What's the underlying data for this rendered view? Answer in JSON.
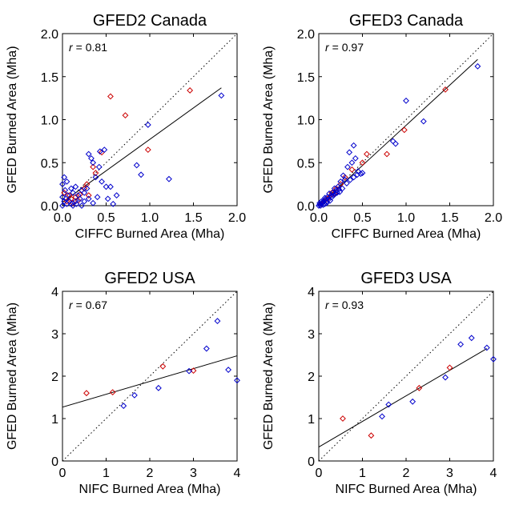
{
  "chart_data": [
    {
      "type": "scatter",
      "title": "GFED2 Canada",
      "xlabel": "CIFFC Burned Area (Mha)",
      "ylabel": "GFED Burned Area (Mha)",
      "r_label": "r",
      "r_value": "= 0.81",
      "xlim": [
        0,
        2.0
      ],
      "ylim": [
        0,
        2.0
      ],
      "xticks": [
        "0.0",
        "0.5",
        "1.0",
        "1.5",
        "2.0"
      ],
      "yticks": [
        "0.0",
        "0.5",
        "1.0",
        "1.5",
        "2.0"
      ],
      "xtick_values": [
        0,
        0.5,
        1.0,
        1.5,
        2.0
      ],
      "ytick_values": [
        0,
        0.5,
        1.0,
        1.5,
        2.0
      ],
      "one_to_one_line": true,
      "fit_line": [
        [
          0,
          0.04
        ],
        [
          1.82,
          1.37
        ]
      ],
      "series": [
        {
          "color": "#cc0000",
          "points": [
            [
              0.55,
              1.27
            ],
            [
              0.72,
              1.05
            ],
            [
              1.46,
              1.34
            ],
            [
              0.98,
              0.65
            ],
            [
              0.45,
              0.62
            ],
            [
              0.35,
              0.45
            ],
            [
              0.38,
              0.38
            ],
            [
              0.28,
              0.25
            ],
            [
              0.25,
              0.2
            ],
            [
              0.2,
              0.13
            ],
            [
              0.15,
              0.1
            ],
            [
              0.1,
              0.08
            ],
            [
              0.05,
              0.05
            ],
            [
              0.12,
              0.03
            ],
            [
              0.08,
              0.12
            ],
            [
              0.3,
              0.12
            ],
            [
              0.02,
              0.15
            ],
            [
              0.18,
              0.06
            ]
          ]
        },
        {
          "color": "#0000cc",
          "points": [
            [
              1.82,
              1.28
            ],
            [
              0.98,
              0.94
            ],
            [
              0.85,
              0.47
            ],
            [
              0.9,
              0.36
            ],
            [
              1.22,
              0.31
            ],
            [
              0.48,
              0.65
            ],
            [
              0.43,
              0.63
            ],
            [
              0.3,
              0.6
            ],
            [
              0.35,
              0.5
            ],
            [
              0.33,
              0.55
            ],
            [
              0.42,
              0.45
            ],
            [
              0.38,
              0.33
            ],
            [
              0.45,
              0.28
            ],
            [
              0.5,
              0.22
            ],
            [
              0.55,
              0.22
            ],
            [
              0.28,
              0.2
            ],
            [
              0.22,
              0.18
            ],
            [
              0.25,
              0.15
            ],
            [
              0.15,
              0.22
            ],
            [
              0.1,
              0.2
            ],
            [
              0.05,
              0.28
            ],
            [
              0.02,
              0.33
            ],
            [
              0.0,
              0.25
            ],
            [
              0.03,
              0.18
            ],
            [
              0.06,
              0.12
            ],
            [
              0.12,
              0.15
            ],
            [
              0.18,
              0.12
            ],
            [
              0.2,
              0.08
            ],
            [
              0.15,
              0.05
            ],
            [
              0.08,
              0.05
            ],
            [
              0.05,
              0.02
            ],
            [
              0.02,
              0.05
            ],
            [
              0.0,
              0.0
            ],
            [
              0.1,
              0.02
            ],
            [
              0.25,
              0.05
            ],
            [
              0.3,
              0.08
            ],
            [
              0.4,
              0.1
            ],
            [
              0.52,
              0.08
            ],
            [
              0.58,
              0.02
            ],
            [
              0.22,
              0.0
            ],
            [
              0.35,
              0.03
            ],
            [
              0.12,
              0.0
            ],
            [
              0.0,
              0.1
            ],
            [
              0.04,
              0.08
            ],
            [
              0.16,
              0.02
            ],
            [
              0.62,
              0.12
            ]
          ]
        }
      ]
    },
    {
      "type": "scatter",
      "title": "GFED3 Canada",
      "xlabel": "CIFFC Burned Area (Mha)",
      "ylabel": "GFED Burned Area (Mha)",
      "r_label": "r",
      "r_value": "= 0.97",
      "xlim": [
        0,
        2.0
      ],
      "ylim": [
        0,
        2.0
      ],
      "xticks": [
        "0.0",
        "0.5",
        "1.0",
        "1.5",
        "2.0"
      ],
      "yticks": [
        "0.0",
        "0.5",
        "1.0",
        "1.5",
        "2.0"
      ],
      "xtick_values": [
        0,
        0.5,
        1.0,
        1.5,
        2.0
      ],
      "ytick_values": [
        0,
        0.5,
        1.0,
        1.5,
        2.0
      ],
      "one_to_one_line": true,
      "fit_line": [
        [
          0,
          0.0
        ],
        [
          1.82,
          1.7
        ]
      ],
      "series": [
        {
          "color": "#cc0000",
          "points": [
            [
              1.45,
              1.35
            ],
            [
              0.98,
              0.88
            ],
            [
              0.78,
              0.6
            ],
            [
              0.55,
              0.6
            ],
            [
              0.5,
              0.5
            ],
            [
              0.38,
              0.42
            ],
            [
              0.3,
              0.33
            ],
            [
              0.25,
              0.25
            ],
            [
              0.2,
              0.2
            ],
            [
              0.15,
              0.15
            ],
            [
              0.1,
              0.08
            ],
            [
              0.06,
              0.05
            ],
            [
              0.03,
              0.02
            ],
            [
              0.12,
              0.1
            ],
            [
              0.18,
              0.14
            ]
          ]
        },
        {
          "color": "#0000cc",
          "points": [
            [
              1.82,
              1.62
            ],
            [
              1.0,
              1.22
            ],
            [
              1.2,
              0.98
            ],
            [
              0.85,
              0.75
            ],
            [
              0.88,
              0.72
            ],
            [
              0.4,
              0.7
            ],
            [
              0.35,
              0.62
            ],
            [
              0.42,
              0.55
            ],
            [
              0.38,
              0.5
            ],
            [
              0.33,
              0.45
            ],
            [
              0.45,
              0.4
            ],
            [
              0.5,
              0.38
            ],
            [
              0.28,
              0.35
            ],
            [
              0.3,
              0.3
            ],
            [
              0.25,
              0.28
            ],
            [
              0.22,
              0.22
            ],
            [
              0.2,
              0.18
            ],
            [
              0.18,
              0.2
            ],
            [
              0.16,
              0.15
            ],
            [
              0.14,
              0.12
            ],
            [
              0.12,
              0.14
            ],
            [
              0.1,
              0.1
            ],
            [
              0.08,
              0.08
            ],
            [
              0.06,
              0.06
            ],
            [
              0.05,
              0.04
            ],
            [
              0.04,
              0.03
            ],
            [
              0.02,
              0.02
            ],
            [
              0.01,
              0.01
            ],
            [
              0.0,
              0.0
            ],
            [
              0.03,
              0.05
            ],
            [
              0.07,
              0.09
            ],
            [
              0.09,
              0.05
            ],
            [
              0.11,
              0.07
            ],
            [
              0.13,
              0.06
            ],
            [
              0.15,
              0.1
            ],
            [
              0.17,
              0.12
            ],
            [
              0.19,
              0.14
            ],
            [
              0.24,
              0.16
            ],
            [
              0.27,
              0.2
            ],
            [
              0.32,
              0.26
            ],
            [
              0.36,
              0.3
            ],
            [
              0.4,
              0.33
            ],
            [
              0.44,
              0.36
            ],
            [
              0.48,
              0.37
            ],
            [
              0.01,
              0.03
            ],
            [
              0.02,
              0.0
            ],
            [
              0.05,
              0.01
            ],
            [
              0.07,
              0.02
            ],
            [
              0.09,
              0.03
            ],
            [
              0.21,
              0.15
            ],
            [
              0.23,
              0.19
            ]
          ]
        }
      ]
    },
    {
      "type": "scatter",
      "title": "GFED2 USA",
      "xlabel": "NIFC Burned Area (Mha)",
      "ylabel": "GFED Burned Area (Mha)",
      "r_label": "r",
      "r_value": "= 0.67",
      "xlim": [
        0,
        4
      ],
      "ylim": [
        0,
        4
      ],
      "xticks": [
        "0",
        "1",
        "2",
        "3",
        "4"
      ],
      "yticks": [
        "0",
        "1",
        "2",
        "3",
        "4"
      ],
      "xtick_values": [
        0,
        1,
        2,
        3,
        4
      ],
      "ytick_values": [
        0,
        1,
        2,
        3,
        4
      ],
      "one_to_one_line": true,
      "fit_line": [
        [
          0,
          1.27
        ],
        [
          4,
          2.48
        ]
      ],
      "series": [
        {
          "color": "#cc0000",
          "points": [
            [
              0.55,
              1.6
            ],
            [
              1.15,
              1.62
            ],
            [
              2.3,
              2.23
            ],
            [
              3.0,
              2.13
            ]
          ]
        },
        {
          "color": "#0000cc",
          "points": [
            [
              1.4,
              1.3
            ],
            [
              1.65,
              1.55
            ],
            [
              2.2,
              1.72
            ],
            [
              2.9,
              2.12
            ],
            [
              3.3,
              2.65
            ],
            [
              3.55,
              3.3
            ],
            [
              3.8,
              2.15
            ],
            [
              4.0,
              1.9
            ]
          ]
        }
      ]
    },
    {
      "type": "scatter",
      "title": "GFED3 USA",
      "xlabel": "NIFC Burned Area (Mha)",
      "ylabel": "GFED Burned Area (Mha)",
      "r_label": "r",
      "r_value": "= 0.93",
      "xlim": [
        0,
        4
      ],
      "ylim": [
        0,
        4
      ],
      "xticks": [
        "0",
        "1",
        "2",
        "3",
        "4"
      ],
      "yticks": [
        "0",
        "1",
        "2",
        "3",
        "4"
      ],
      "xtick_values": [
        0,
        1,
        2,
        3,
        4
      ],
      "ytick_values": [
        0,
        1,
        2,
        3,
        4
      ],
      "one_to_one_line": true,
      "fit_line": [
        [
          0,
          0.33
        ],
        [
          3.85,
          2.65
        ]
      ],
      "series": [
        {
          "color": "#cc0000",
          "points": [
            [
              0.55,
              1.0
            ],
            [
              1.2,
              0.6
            ],
            [
              2.3,
              1.72
            ],
            [
              3.0,
              2.2
            ]
          ]
        },
        {
          "color": "#0000cc",
          "points": [
            [
              1.45,
              1.05
            ],
            [
              1.6,
              1.33
            ],
            [
              2.15,
              1.4
            ],
            [
              2.9,
              1.97
            ],
            [
              3.25,
              2.75
            ],
            [
              3.5,
              2.9
            ],
            [
              3.85,
              2.67
            ],
            [
              4.0,
              2.4
            ]
          ]
        }
      ]
    }
  ]
}
